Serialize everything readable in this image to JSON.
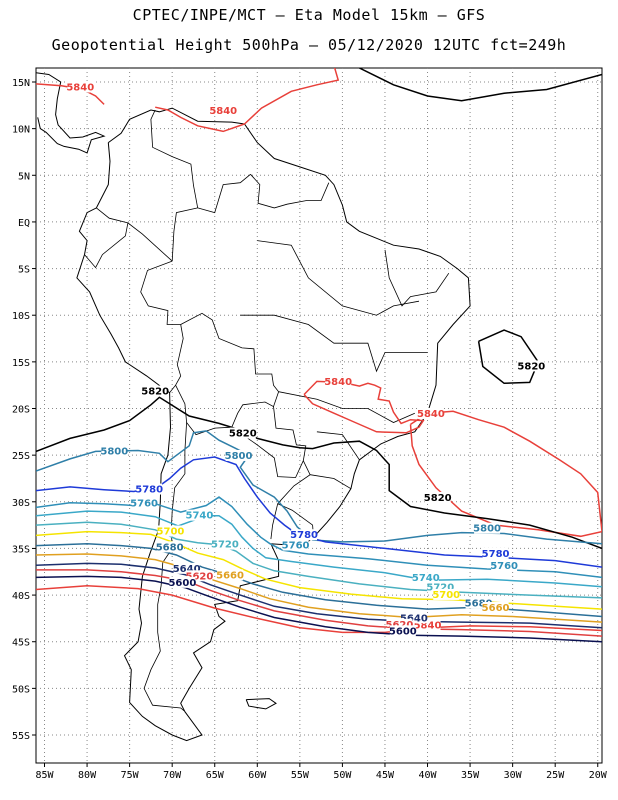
{
  "header": {
    "line1": "CPTEC/INPE/MCT – Eta Model 15km – GFS",
    "line2": "Geopotential Height 500hPa – 05/12/2020 12UTC fct=249h"
  },
  "axes": {
    "lat_ticks": [
      "15N",
      "10N",
      "5N",
      "EQ",
      "5S",
      "10S",
      "15S",
      "20S",
      "25S",
      "30S",
      "35S",
      "40S",
      "45S",
      "50S",
      "55S"
    ],
    "lon_ticks": [
      "85W",
      "80W",
      "75W",
      "70W",
      "65W",
      "60W",
      "55W",
      "50W",
      "45W",
      "40W",
      "35W",
      "30W",
      "25W",
      "20W"
    ],
    "lat_values": [
      15,
      10,
      5,
      0,
      -5,
      -10,
      -15,
      -20,
      -25,
      -30,
      -35,
      -40,
      -45,
      -50,
      -55
    ],
    "lon_values": [
      -85,
      -80,
      -75,
      -70,
      -65,
      -60,
      -55,
      -50,
      -45,
      -40,
      -35,
      -30,
      -25,
      -20
    ],
    "lat_range": [
      -58,
      16.5
    ],
    "lon_range": [
      -86,
      -19.5
    ],
    "grid": "dotted"
  },
  "contours": [
    {
      "level": "5840",
      "color": "#e8403a",
      "labels": [
        {
          "text": "5840",
          "lon": -80.8,
          "lat": 14.2
        },
        {
          "text": "5840",
          "lon": -64.0,
          "lat": 11.7
        },
        {
          "text": "5840",
          "lon": -50.5,
          "lat": -17.4
        },
        {
          "text": "5840",
          "lon": -39.6,
          "lat": -20.8
        },
        {
          "text": "5840",
          "lon": -40.0,
          "lat": -43.5
        }
      ]
    },
    {
      "level": "5820",
      "color": "#000000",
      "labels": [
        {
          "text": "5820",
          "lon": -72.0,
          "lat": -18.4
        },
        {
          "text": "5820",
          "lon": -27.8,
          "lat": -15.7
        },
        {
          "text": "5820",
          "lon": -61.7,
          "lat": -22.9
        },
        {
          "text": "5820",
          "lon": -38.8,
          "lat": -29.8
        }
      ]
    },
    {
      "level": "5800",
      "color": "#2f7fa8",
      "labels": [
        {
          "text": "5800",
          "lon": -76.8,
          "lat": -24.8
        },
        {
          "text": "5800",
          "lon": -62.2,
          "lat": -25.3
        },
        {
          "text": "5800",
          "lon": -33.0,
          "lat": -33.1
        }
      ]
    },
    {
      "level": "5780",
      "color": "#1e3ad8",
      "labels": [
        {
          "text": "5780",
          "lon": -72.7,
          "lat": -28.9
        },
        {
          "text": "5780",
          "lon": -54.5,
          "lat": -33.8
        },
        {
          "text": "5780",
          "lon": -32.0,
          "lat": -35.8
        }
      ]
    },
    {
      "level": "5760",
      "color": "#2f8fb8",
      "labels": [
        {
          "text": "5760",
          "lon": -73.3,
          "lat": -30.4
        },
        {
          "text": "5760",
          "lon": -55.5,
          "lat": -34.9
        },
        {
          "text": "5760",
          "lon": -31.0,
          "lat": -37.1
        }
      ]
    },
    {
      "level": "5740",
      "color": "#3aa8c8",
      "labels": [
        {
          "text": "5740",
          "lon": -66.8,
          "lat": -31.7
        },
        {
          "text": "5740",
          "lon": -40.2,
          "lat": -38.4
        }
      ]
    },
    {
      "level": "5720",
      "color": "#4ab0c0",
      "labels": [
        {
          "text": "5720",
          "lon": -63.8,
          "lat": -34.8
        },
        {
          "text": "5720",
          "lon": -38.5,
          "lat": -39.4
        }
      ]
    },
    {
      "level": "5700",
      "color": "#f5e400",
      "labels": [
        {
          "text": "5700",
          "lon": -70.2,
          "lat": -33.4
        },
        {
          "text": "5700",
          "lon": -37.8,
          "lat": -40.2
        }
      ]
    },
    {
      "level": "5680",
      "color": "#2b6f98",
      "labels": [
        {
          "text": "5680",
          "lon": -70.3,
          "lat": -35.1
        },
        {
          "text": "5680",
          "lon": -34.0,
          "lat": -41.1
        }
      ]
    },
    {
      "level": "5660",
      "color": "#e0a020",
      "labels": [
        {
          "text": "5660",
          "lon": -63.2,
          "lat": -38.1
        },
        {
          "text": "5660",
          "lon": -32.0,
          "lat": -41.6
        }
      ]
    },
    {
      "level": "5640",
      "color": "#1c2f6e",
      "labels": [
        {
          "text": "5640",
          "lon": -68.3,
          "lat": -37.4
        },
        {
          "text": "5640",
          "lon": -41.6,
          "lat": -42.7
        }
      ]
    },
    {
      "level": "5620",
      "color": "#e04040",
      "labels": [
        {
          "text": "5620",
          "lon": -66.8,
          "lat": -38.2
        },
        {
          "text": "5620",
          "lon": -43.3,
          "lat": -43.4
        }
      ]
    },
    {
      "level": "5600",
      "color": "#0a1050",
      "labels": [
        {
          "text": "5600",
          "lon": -68.8,
          "lat": -38.9
        },
        {
          "text": "5600",
          "lon": -42.9,
          "lat": -44.1
        }
      ]
    }
  ]
}
